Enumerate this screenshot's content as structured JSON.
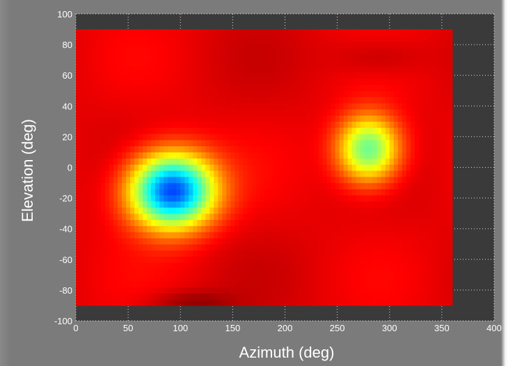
{
  "chart_data": {
    "type": "heatmap",
    "title": "",
    "xlabel": "Azimuth (deg)",
    "ylabel": "Elevation (deg)",
    "xlim": [
      0,
      400
    ],
    "ylim": [
      -100,
      100
    ],
    "xticks": [
      "0",
      "50",
      "100",
      "150",
      "200",
      "250",
      "300",
      "350",
      "400"
    ],
    "yticks": [
      "100",
      "80",
      "60",
      "40",
      "20",
      "0",
      "-20",
      "-40",
      "-60",
      "-80",
      "-100"
    ],
    "grid": true,
    "colormap": "jet",
    "data_extent": {
      "x": [
        0,
        360
      ],
      "y": [
        -90,
        90
      ]
    },
    "background_value": 0.9,
    "features": [
      {
        "label": "minimum",
        "x": 92,
        "y": -15,
        "value": 0.18,
        "amplitude": -0.72,
        "sx": 40,
        "sy": 24
      },
      {
        "label": "minimum",
        "x": 280,
        "y": 12,
        "value": 0.46,
        "amplitude": -0.44,
        "sx": 30,
        "sy": 22
      },
      {
        "label": "maximum",
        "x": 110,
        "y": -88,
        "value": 0.98,
        "amplitude": 0.08,
        "sx": 40,
        "sy": 8
      },
      {
        "label": "maximum",
        "x": 290,
        "y": 72,
        "value": 0.95,
        "amplitude": 0.05,
        "sx": 45,
        "sy": 12
      }
    ],
    "colors": {
      "axes_background": "#3a3a3a",
      "grid": "#ffffff",
      "text": "#ffffff"
    }
  }
}
